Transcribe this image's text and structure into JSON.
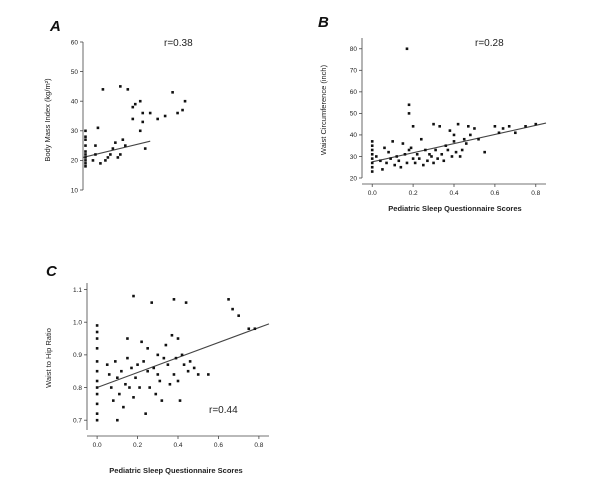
{
  "chart_data": [
    {
      "type": "scatter",
      "panel": "A",
      "annotation": "r=0.38",
      "ylabel": "Body Mass Index (kg/m²)",
      "xlabel": "",
      "xlim": [
        0,
        0.45
      ],
      "ylim": [
        10,
        60
      ],
      "yticks": [
        10,
        20,
        30,
        40,
        50,
        60
      ],
      "xticks": [],
      "trend": {
        "x": [
          0.0,
          0.27
        ],
        "y": [
          21,
          26.5
        ]
      },
      "x": [
        0.01,
        0.01,
        0.01,
        0.01,
        0.01,
        0.01,
        0.01,
        0.01,
        0.01,
        0.01,
        0.04,
        0.05,
        0.05,
        0.06,
        0.07,
        0.08,
        0.09,
        0.1,
        0.11,
        0.12,
        0.13,
        0.14,
        0.15,
        0.15,
        0.16,
        0.17,
        0.18,
        0.2,
        0.2,
        0.21,
        0.23,
        0.23,
        0.24,
        0.24,
        0.25,
        0.27,
        0.3,
        0.33,
        0.36,
        0.38,
        0.4,
        0.41
      ],
      "y": [
        18,
        19,
        20,
        21,
        22,
        23,
        25,
        27,
        28,
        30,
        20,
        22,
        25,
        31,
        19,
        44,
        20,
        21,
        22,
        24,
        26,
        21,
        22,
        45,
        27,
        25,
        44,
        34,
        38,
        39,
        40,
        30,
        33,
        36,
        24,
        36,
        34,
        35,
        43,
        36,
        37,
        40
      ]
    },
    {
      "type": "scatter",
      "panel": "B",
      "annotation": "r=0.28",
      "ylabel": "Waist Circumference (inch)",
      "xlabel": "Pediatric Sleep Questionnaire Scores",
      "xlim": [
        -0.05,
        0.85
      ],
      "ylim": [
        20,
        85
      ],
      "yticks": [
        20,
        30,
        40,
        50,
        60,
        70,
        80
      ],
      "xticks": [
        0.0,
        0.2,
        0.4,
        0.6,
        0.8
      ],
      "trend": {
        "x": [
          0.0,
          0.85
        ],
        "y": [
          27.5,
          45.5
        ]
      },
      "x": [
        0.0,
        0.0,
        0.0,
        0.0,
        0.0,
        0.0,
        0.0,
        0.0,
        0.02,
        0.04,
        0.05,
        0.06,
        0.07,
        0.08,
        0.09,
        0.1,
        0.11,
        0.12,
        0.13,
        0.14,
        0.15,
        0.16,
        0.17,
        0.17,
        0.18,
        0.18,
        0.18,
        0.19,
        0.2,
        0.2,
        0.21,
        0.22,
        0.23,
        0.24,
        0.25,
        0.26,
        0.27,
        0.28,
        0.29,
        0.3,
        0.3,
        0.31,
        0.32,
        0.33,
        0.34,
        0.35,
        0.36,
        0.37,
        0.38,
        0.39,
        0.4,
        0.4,
        0.41,
        0.42,
        0.43,
        0.44,
        0.45,
        0.46,
        0.47,
        0.48,
        0.5,
        0.52,
        0.55,
        0.6,
        0.62,
        0.64,
        0.67,
        0.7,
        0.75,
        0.8
      ],
      "y": [
        25,
        27,
        29,
        31,
        33,
        35,
        37,
        23,
        30,
        28,
        24,
        34,
        27,
        32,
        29,
        37,
        26,
        30,
        28,
        25,
        36,
        31,
        27,
        80,
        54,
        50,
        33,
        34,
        29,
        44,
        27,
        31,
        29,
        38,
        26,
        33,
        28,
        31,
        30,
        45,
        27,
        33,
        29,
        44,
        31,
        28,
        35,
        33,
        42,
        30,
        37,
        40,
        32,
        45,
        30,
        33,
        38,
        36,
        44,
        40,
        43,
        38,
        32,
        44,
        41,
        43,
        44,
        41,
        44,
        45
      ]
    },
    {
      "type": "scatter",
      "panel": "C",
      "annotation": "r=0.44",
      "ylabel": "Waist to Hip Ratio",
      "xlabel": "Pediatric Sleep Questionnaire Scores",
      "xlim": [
        -0.05,
        0.85
      ],
      "ylim": [
        0.67,
        1.12
      ],
      "yticks": [
        0.7,
        0.8,
        0.9,
        1.0,
        1.1
      ],
      "xticks": [
        0.0,
        0.2,
        0.4,
        0.6,
        0.8
      ],
      "trend": {
        "x": [
          0.0,
          0.85
        ],
        "y": [
          0.8,
          0.995
        ]
      },
      "x": [
        0.0,
        0.0,
        0.0,
        0.0,
        0.0,
        0.0,
        0.0,
        0.0,
        0.0,
        0.0,
        0.0,
        0.0,
        0.05,
        0.06,
        0.07,
        0.08,
        0.09,
        0.1,
        0.1,
        0.11,
        0.12,
        0.13,
        0.14,
        0.15,
        0.15,
        0.16,
        0.17,
        0.18,
        0.18,
        0.19,
        0.2,
        0.21,
        0.22,
        0.23,
        0.24,
        0.25,
        0.25,
        0.26,
        0.27,
        0.28,
        0.29,
        0.3,
        0.3,
        0.31,
        0.32,
        0.33,
        0.34,
        0.35,
        0.36,
        0.37,
        0.38,
        0.38,
        0.39,
        0.4,
        0.4,
        0.41,
        0.42,
        0.43,
        0.44,
        0.45,
        0.46,
        0.48,
        0.5,
        0.55,
        0.65,
        0.67,
        0.7,
        0.75,
        0.78
      ],
      "y": [
        0.7,
        0.72,
        0.75,
        0.78,
        0.8,
        0.82,
        0.85,
        0.88,
        0.92,
        0.95,
        0.97,
        0.99,
        0.87,
        0.84,
        0.8,
        0.76,
        0.88,
        0.7,
        0.83,
        0.78,
        0.85,
        0.74,
        0.81,
        0.89,
        0.95,
        0.8,
        0.86,
        1.08,
        0.77,
        0.83,
        0.87,
        0.8,
        0.94,
        0.88,
        0.72,
        0.85,
        0.92,
        0.8,
        1.06,
        0.86,
        0.78,
        0.9,
        0.84,
        0.82,
        0.76,
        0.89,
        0.93,
        0.87,
        0.81,
        0.96,
        1.07,
        0.84,
        0.89,
        0.82,
        0.95,
        0.76,
        0.9,
        0.87,
        1.06,
        0.85,
        0.88,
        0.86,
        0.84,
        0.84,
        1.07,
        1.04,
        1.02,
        0.98,
        0.98
      ]
    }
  ]
}
